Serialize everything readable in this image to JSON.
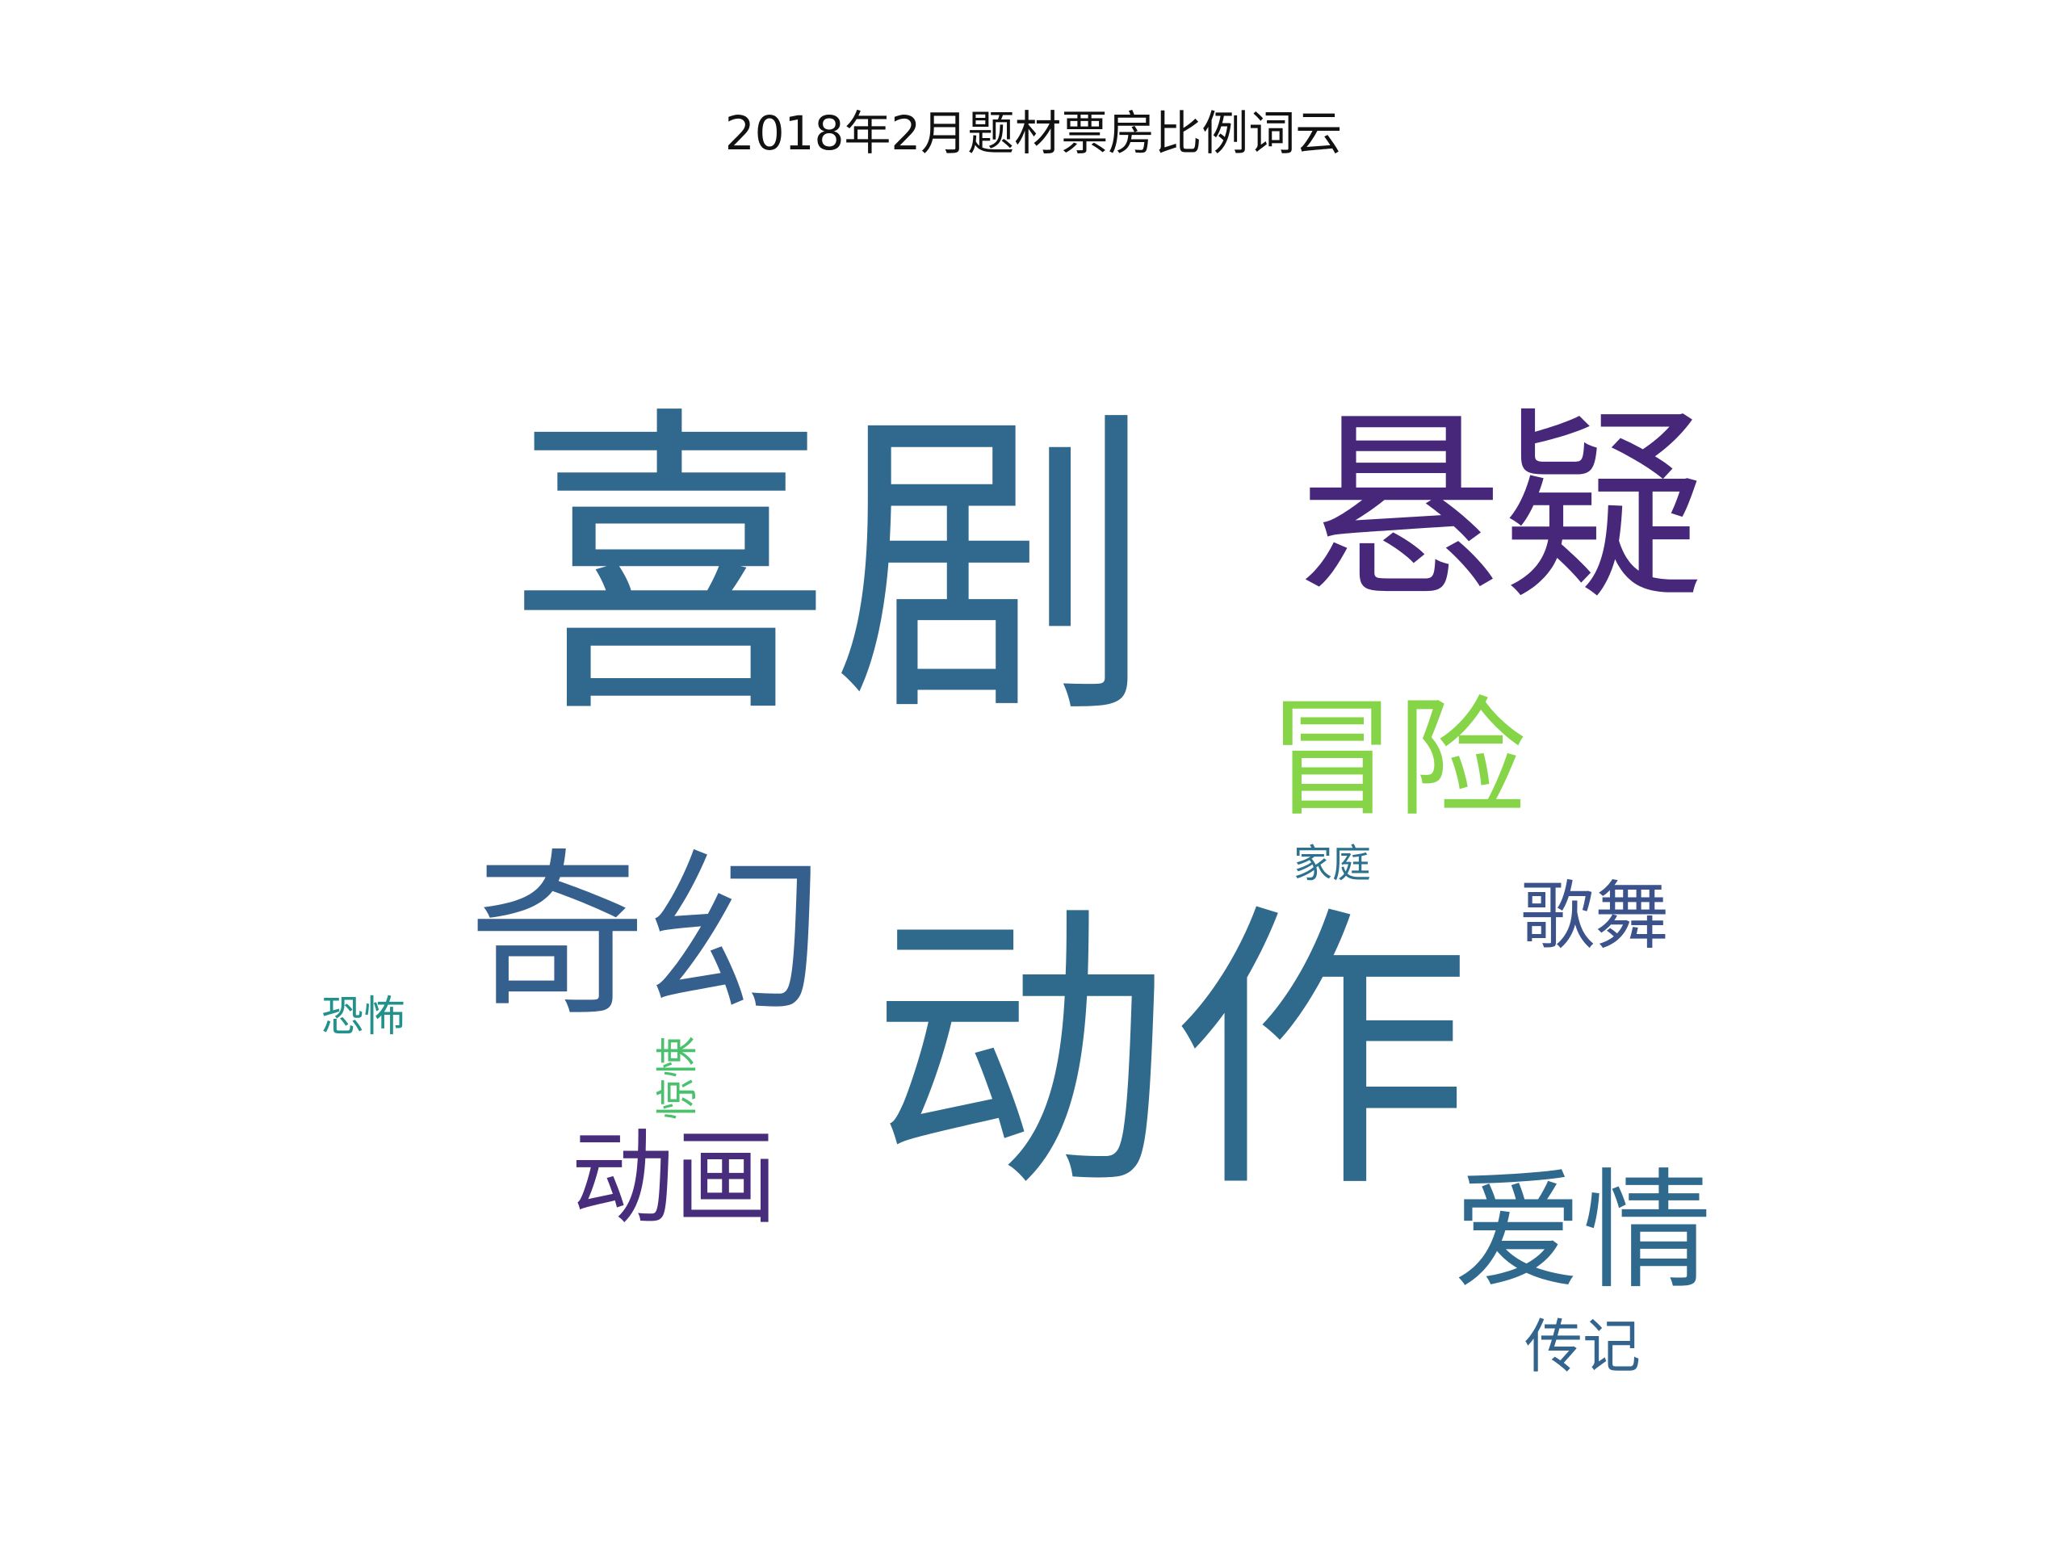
{
  "chart_data": {
    "type": "wordcloud",
    "title": "2018年2月题材票房比例词云",
    "colormap": "viridis",
    "words": [
      {
        "text": "喜剧",
        "weight": 1.0,
        "color": "#31688e",
        "orientation": "horizontal"
      },
      {
        "text": "动作",
        "weight": 0.93,
        "color": "#2f6a8d",
        "orientation": "horizontal"
      },
      {
        "text": "悬疑",
        "weight": 0.63,
        "color": "#46277a",
        "orientation": "horizontal"
      },
      {
        "text": "奇幻",
        "weight": 0.55,
        "color": "#355f8d",
        "orientation": "horizontal"
      },
      {
        "text": "爱情",
        "weight": 0.4,
        "color": "#30698e",
        "orientation": "horizontal"
      },
      {
        "text": "冒险",
        "weight": 0.4,
        "color": "#86d549",
        "orientation": "horizontal"
      },
      {
        "text": "动画",
        "weight": 0.32,
        "color": "#472d7b",
        "orientation": "horizontal"
      },
      {
        "text": "歌舞",
        "weight": 0.23,
        "color": "#3b528b",
        "orientation": "horizontal"
      },
      {
        "text": "传记",
        "weight": 0.18,
        "color": "#32648e",
        "orientation": "horizontal"
      },
      {
        "text": "惊悚",
        "weight": 0.13,
        "color": "#4ac16d",
        "orientation": "vertical"
      },
      {
        "text": "恐怖",
        "weight": 0.13,
        "color": "#21918c",
        "orientation": "horizontal"
      },
      {
        "text": "家庭",
        "weight": 0.12,
        "color": "#2c728e",
        "orientation": "horizontal"
      }
    ]
  }
}
